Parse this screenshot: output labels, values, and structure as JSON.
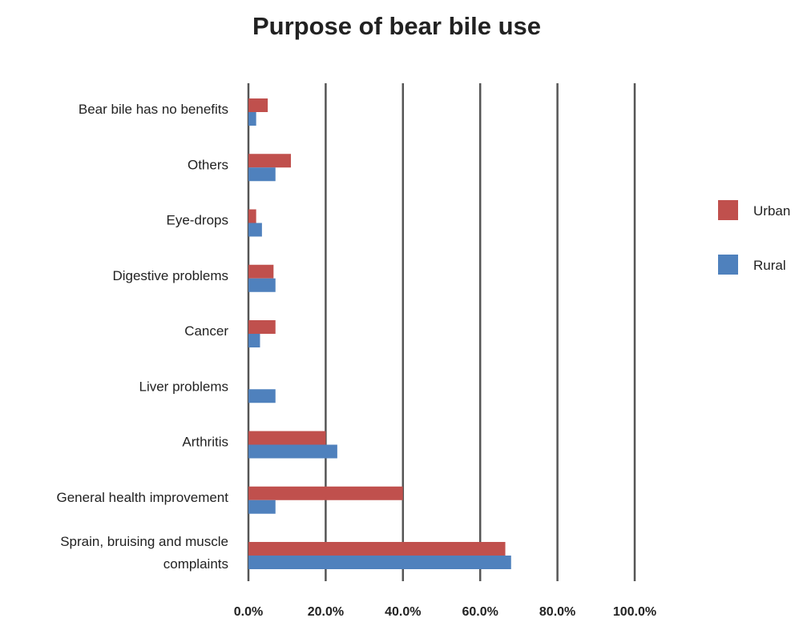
{
  "chart_data": {
    "type": "bar",
    "orientation": "horizontal",
    "title": "Purpose of bear bile use",
    "xlabel": "",
    "ylabel": "",
    "xlim": [
      0,
      100
    ],
    "x_ticks": [
      "0.0%",
      "20.0%",
      "40.0%",
      "60.0%",
      "80.0%",
      "100.0%"
    ],
    "grid": "vertical lines",
    "legend_position": "right",
    "categories": [
      [
        "Bear bile has no benefits"
      ],
      [
        "Others"
      ],
      [
        "Eye-drops"
      ],
      [
        "Digestive problems"
      ],
      [
        "Cancer"
      ],
      [
        "Liver problems"
      ],
      [
        "Arthritis"
      ],
      [
        "General health improvement"
      ],
      [
        "Sprain, bruising and muscle",
        "complaints"
      ]
    ],
    "series": [
      {
        "name": "Urban",
        "color": "#c0504d",
        "values": [
          5.0,
          11.0,
          2.0,
          6.5,
          7.0,
          0.0,
          20.0,
          40.0,
          66.5
        ]
      },
      {
        "name": "Rural",
        "color": "#4f81bd",
        "values": [
          2.0,
          7.0,
          3.5,
          7.0,
          3.0,
          7.0,
          23.0,
          7.0,
          68.0
        ]
      }
    ]
  }
}
